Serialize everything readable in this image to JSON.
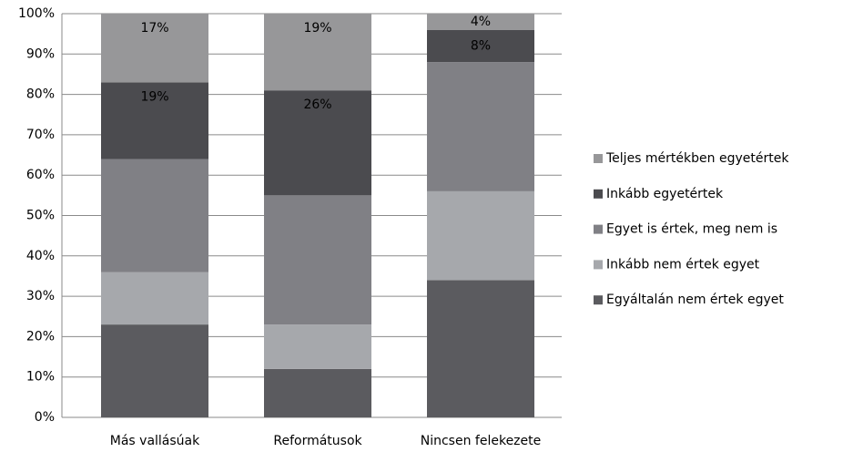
{
  "chart_data": {
    "type": "bar",
    "stacked": true,
    "categories": [
      "Más vallásúak",
      "Reformátusok",
      "Nincsen felekezete"
    ],
    "series": [
      {
        "name": "Egyáltalán nem értek egyet",
        "color": "#5b5b5f",
        "values": [
          23,
          12,
          34
        ]
      },
      {
        "name": "Inkább nem értek egyet",
        "color": "#a6a8ac",
        "values": [
          13,
          11,
          22
        ]
      },
      {
        "name": "Egyet is értek, meg nem is",
        "color": "#808085",
        "values": [
          28,
          32,
          32
        ]
      },
      {
        "name": "Inkább egyetértek",
        "color": "#4b4b4f",
        "values": [
          19,
          26,
          8
        ],
        "value_labels": [
          "19%",
          "26%",
          "8%"
        ]
      },
      {
        "name": "Teljes mértékben egyetértek",
        "color": "#979799",
        "values": [
          17,
          19,
          4
        ],
        "value_labels": [
          "17%",
          "19%",
          "4%"
        ]
      }
    ],
    "ylim": [
      0,
      100
    ],
    "yticks": [
      {
        "value": 0,
        "label": "0%"
      },
      {
        "value": 10,
        "label": "10%"
      },
      {
        "value": 20,
        "label": "20%"
      },
      {
        "value": 30,
        "label": "30%"
      },
      {
        "value": 40,
        "label": "40%"
      },
      {
        "value": 50,
        "label": "50%"
      },
      {
        "value": 60,
        "label": "60%"
      },
      {
        "value": 70,
        "label": "70%"
      },
      {
        "value": 80,
        "label": "80%"
      },
      {
        "value": 90,
        "label": "90%"
      },
      {
        "value": 100,
        "label": "100%"
      }
    ],
    "grid": true,
    "legend": "right"
  }
}
